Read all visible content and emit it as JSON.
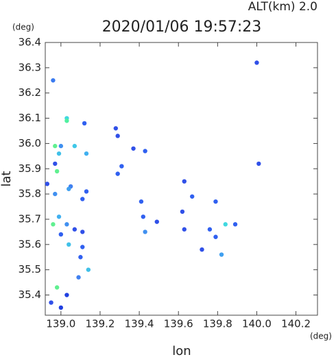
{
  "chart_data": {
    "type": "scatter",
    "title": "2020/01/06 19:57:23",
    "subtitle": "ALT(km) 2.0",
    "x_label": "lon",
    "y_label": "lat",
    "x_unit": "(deg)",
    "y_unit": "(deg)",
    "xlim": [
      138.92,
      140.31
    ],
    "ylim": [
      35.32,
      36.4
    ],
    "xticks": [
      {
        "value": 139,
        "label": "139.0"
      },
      139.2,
      139.4,
      139.6,
      139.8,
      {
        "value": 140,
        "label": "140.0"
      },
      140.2
    ],
    "yticks": [
      36.4,
      36.3,
      36.2,
      36.1,
      {
        "value": 36,
        "label": "36.0"
      },
      35.9,
      35.8,
      35.7,
      35.6,
      35.5,
      35.4
    ],
    "x": [
      138.96,
      140.0,
      139.03,
      139.03,
      139.12,
      139.28,
      139.29,
      139.07,
      138.97,
      139.0,
      138.99,
      139.13,
      139.37,
      139.43,
      138.97,
      138.98,
      139.31,
      140.01,
      139.29,
      138.93,
      139.05,
      139.04,
      139.13,
      139.63,
      138.97,
      139.11,
      139.41,
      139.67,
      139.79,
      138.99,
      139.62,
      139.42,
      138.96,
      139.03,
      139.07,
      139.0,
      139.11,
      139.49,
      139.43,
      139.63,
      139.84,
      139.89,
      139.76,
      139.79,
      139.04,
      139.11,
      139.72,
      139.82,
      139.1,
      139.14,
      139.09,
      138.98,
      139.03,
      138.95,
      139.0
    ],
    "values": [
      36.25,
      36.32,
      36.1,
      36.09,
      36.08,
      36.06,
      36.03,
      35.99,
      35.99,
      35.99,
      35.96,
      35.96,
      35.98,
      35.97,
      35.92,
      35.89,
      35.91,
      35.92,
      35.88,
      35.84,
      35.83,
      35.82,
      35.81,
      35.85,
      35.8,
      35.78,
      35.77,
      35.79,
      35.77,
      35.71,
      35.73,
      35.71,
      35.68,
      35.68,
      35.66,
      35.64,
      35.65,
      35.69,
      35.65,
      35.66,
      35.68,
      35.68,
      35.66,
      35.63,
      35.6,
      35.59,
      35.58,
      35.56,
      35.55,
      35.5,
      35.47,
      35.43,
      35.4,
      35.37,
      35.35
    ],
    "colors": [
      "#3a7af0",
      "#3050e8",
      "#40d8e0",
      "#50f0a0",
      "#3060f0",
      "#3050e8",
      "#3050e8",
      "#40c8e8",
      "#60f090",
      "#4090f0",
      "#40c0e8",
      "#40b0f0",
      "#3050e8",
      "#3060f0",
      "#3050e8",
      "#60f090",
      "#3060f0",
      "#3050e8",
      "#3060f0",
      "#3050e8",
      "#4080f0",
      "#40a0f0",
      "#3060f0",
      "#3050e8",
      "#4090f0",
      "#3060f0",
      "#3060f0",
      "#3060f0",
      "#3060f0",
      "#40b0f0",
      "#3050e8",
      "#3060f0",
      "#60f090",
      "#4090f0",
      "#3050e8",
      "#3060f0",
      "#3050e8",
      "#3050e8",
      "#4090f0",
      "#3050e8",
      "#40d8e0",
      "#3060f0",
      "#3060f0",
      "#3060f0",
      "#40c0e8",
      "#3060f0",
      "#3050e8",
      "#40a0f0",
      "#3060f0",
      "#40c0e8",
      "#4080f0",
      "#60f090",
      "#2040e0",
      "#3050e8",
      "#2040e0"
    ]
  }
}
